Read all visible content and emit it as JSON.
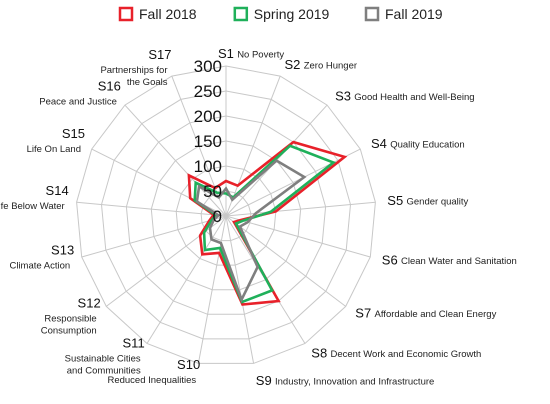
{
  "chart_data": {
    "type": "radar",
    "title": "",
    "rlim": [
      0,
      300
    ],
    "ticks": [
      0,
      50,
      100,
      150,
      200,
      250,
      300
    ],
    "grid": true,
    "legend_position": "top",
    "categories": [
      {
        "code": "S1",
        "name": "No Poverty"
      },
      {
        "code": "S2",
        "name": "Zero Hunger"
      },
      {
        "code": "S3",
        "name": "Good Health and Well-Being"
      },
      {
        "code": "S4",
        "name": "Quality Education"
      },
      {
        "code": "S5",
        "name": "Gender quality"
      },
      {
        "code": "S6",
        "name": "Clean Water and Sanitation"
      },
      {
        "code": "S7",
        "name": "Affordable and Clean Energy"
      },
      {
        "code": "S8",
        "name": "Decent Work and Economic Growth"
      },
      {
        "code": "S9",
        "name": "Industry, Innovation and Infrastructure"
      },
      {
        "code": "S10",
        "name": "Reduced Inequalities"
      },
      {
        "code": "S11",
        "name": "Sustainable Cities and Communities"
      },
      {
        "code": "S12",
        "name": "Responsible Consumption"
      },
      {
        "code": "S13",
        "name": "Climate Action"
      },
      {
        "code": "S14",
        "name": "Life Below Water"
      },
      {
        "code": "S15",
        "name": "Life On Land"
      },
      {
        "code": "S16",
        "name": "Peace and Justice"
      },
      {
        "code": "S17",
        "name": "Partnerships for the Goals"
      }
    ],
    "series": [
      {
        "name": "Fall 2018",
        "color": "#e8212a",
        "values": [
          70,
          65,
          200,
          265,
          100,
          30,
          20,
          200,
          180,
          75,
          90,
          65,
          35,
          25,
          80,
          110,
          60
        ]
      },
      {
        "name": "Spring 2019",
        "color": "#1fb05a",
        "values": [
          45,
          40,
          190,
          240,
          90,
          35,
          25,
          175,
          175,
          65,
          80,
          55,
          30,
          20,
          70,
          90,
          50
        ]
      },
      {
        "name": "Fall 2019",
        "color": "#7f7f7f",
        "values": [
          55,
          35,
          150,
          175,
          60,
          45,
          35,
          120,
          170,
          55,
          55,
          40,
          25,
          15,
          65,
          80,
          40
        ]
      }
    ]
  }
}
